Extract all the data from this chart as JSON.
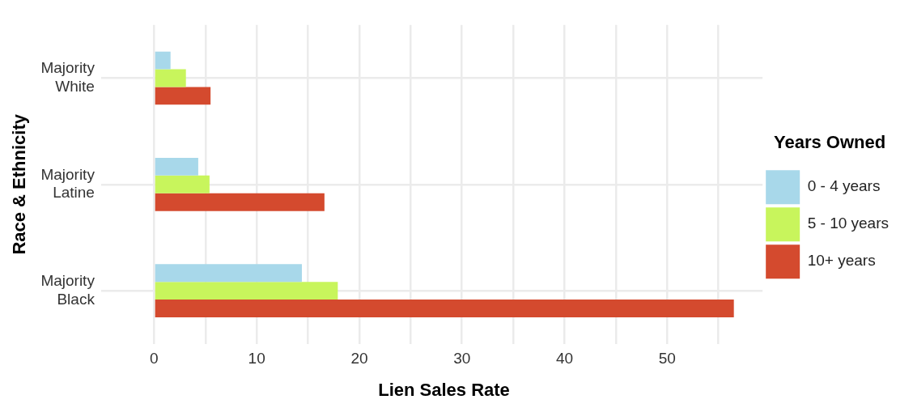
{
  "chart_data": {
    "type": "bar",
    "orientation": "horizontal",
    "xlabel": "Lien Sales Rate",
    "ylabel": "Race & Ethnicity",
    "legend_title": "Years Owned",
    "legend": "right",
    "grid": true,
    "categories": [
      "Majority White",
      "Majority Latine",
      "Majority Black"
    ],
    "series": [
      {
        "name": "0 - 4 years",
        "color": "#a8d8ea",
        "values": [
          1.6,
          4.3,
          14.4
        ]
      },
      {
        "name": "5 - 10 years",
        "color": "#c8f55c",
        "values": [
          3.1,
          5.4,
          17.9
        ]
      },
      {
        "name": "10+ years",
        "color": "#d44a2e",
        "values": [
          5.5,
          16.6,
          56.5
        ]
      }
    ],
    "xlim": [
      -2.8,
      59.3
    ],
    "xticks": [
      0,
      {
        "value": 5,
        "label": null
      },
      10,
      {
        "value": 15,
        "label": null
      },
      20,
      {
        "value": 25,
        "label": null
      },
      30,
      {
        "value": 35,
        "label": null
      },
      40,
      {
        "value": 45,
        "label": null
      },
      50,
      {
        "value": 55,
        "label": null
      }
    ]
  }
}
